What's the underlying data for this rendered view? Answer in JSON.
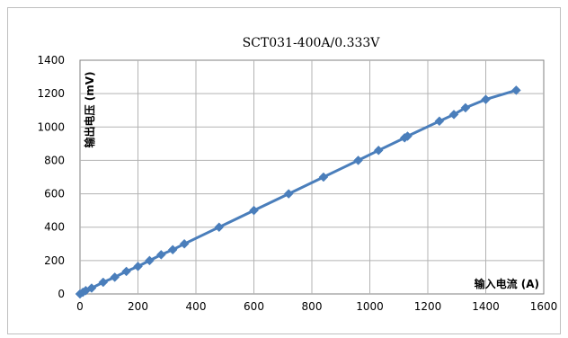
{
  "chart_data": {
    "type": "line",
    "title": "SCT031-400A/0.333V",
    "xlabel": "输入电流 (A)",
    "ylabel": "输出电压 (mV)",
    "xlim": [
      0,
      1600
    ],
    "ylim": [
      0,
      1400
    ],
    "x_ticks": [
      "0",
      "200",
      "400",
      "600",
      "800",
      "1000",
      "1200",
      "1400",
      "1600"
    ],
    "y_ticks": [
      "0",
      "200",
      "400",
      "600",
      "800",
      "1000",
      "1200",
      "1400"
    ],
    "grid": true,
    "legend": "none",
    "series": [
      {
        "color": "#4a7ebb",
        "x": [
          0,
          10,
          20,
          40,
          80,
          120,
          160,
          200,
          240,
          280,
          320,
          360,
          480,
          600,
          720,
          840,
          960,
          1030,
          1120,
          1130,
          1240,
          1290,
          1330,
          1400,
          1505
        ],
        "y": [
          0,
          10,
          20,
          35,
          70,
          100,
          135,
          165,
          200,
          235,
          265,
          300,
          400,
          500,
          600,
          700,
          800,
          860,
          935,
          945,
          1035,
          1075,
          1115,
          1165,
          1220
        ]
      }
    ]
  }
}
